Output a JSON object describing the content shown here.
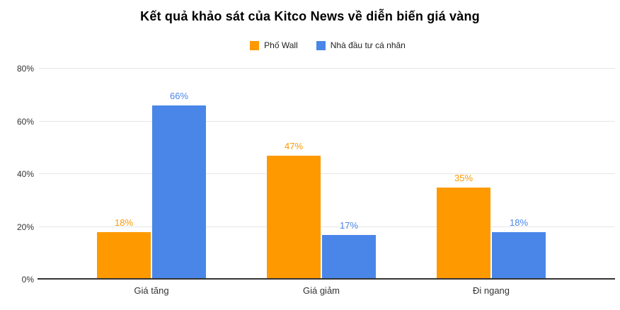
{
  "page": {
    "background": "#FFFFFF"
  },
  "chart_data": {
    "type": "bar",
    "title": "Kết quả khảo sát của Kitco News về diễn biến giá vàng",
    "categories": [
      "Giá tăng",
      "Giá giảm",
      "Đi ngang"
    ],
    "series": [
      {
        "name": "Phố Wall",
        "color": "#FF9900",
        "values": [
          18,
          47,
          35
        ],
        "labels": [
          "18%",
          "47%",
          "35%"
        ]
      },
      {
        "name": "Nhà đầu tư cá nhân",
        "color": "#4A86E8",
        "values": [
          66,
          17,
          18
        ],
        "labels": [
          "66%",
          "17%",
          "18%"
        ]
      }
    ],
    "xlabel": "",
    "ylabel": "",
    "ylim": [
      0,
      80
    ],
    "yticks": [
      {
        "value": 0,
        "label": "0%"
      },
      {
        "value": 20,
        "label": "20%"
      },
      {
        "value": 40,
        "label": "40%"
      },
      {
        "value": 60,
        "label": "60%"
      },
      {
        "value": 80,
        "label": "80%"
      }
    ],
    "grid": true,
    "legend_position": "top",
    "data_labels": true,
    "colors": {
      "grid": "#E6E6E6",
      "baseline": "#333333",
      "title_text": "#000000",
      "axis_label_text": "#333333",
      "legend_text": "#222222"
    }
  }
}
